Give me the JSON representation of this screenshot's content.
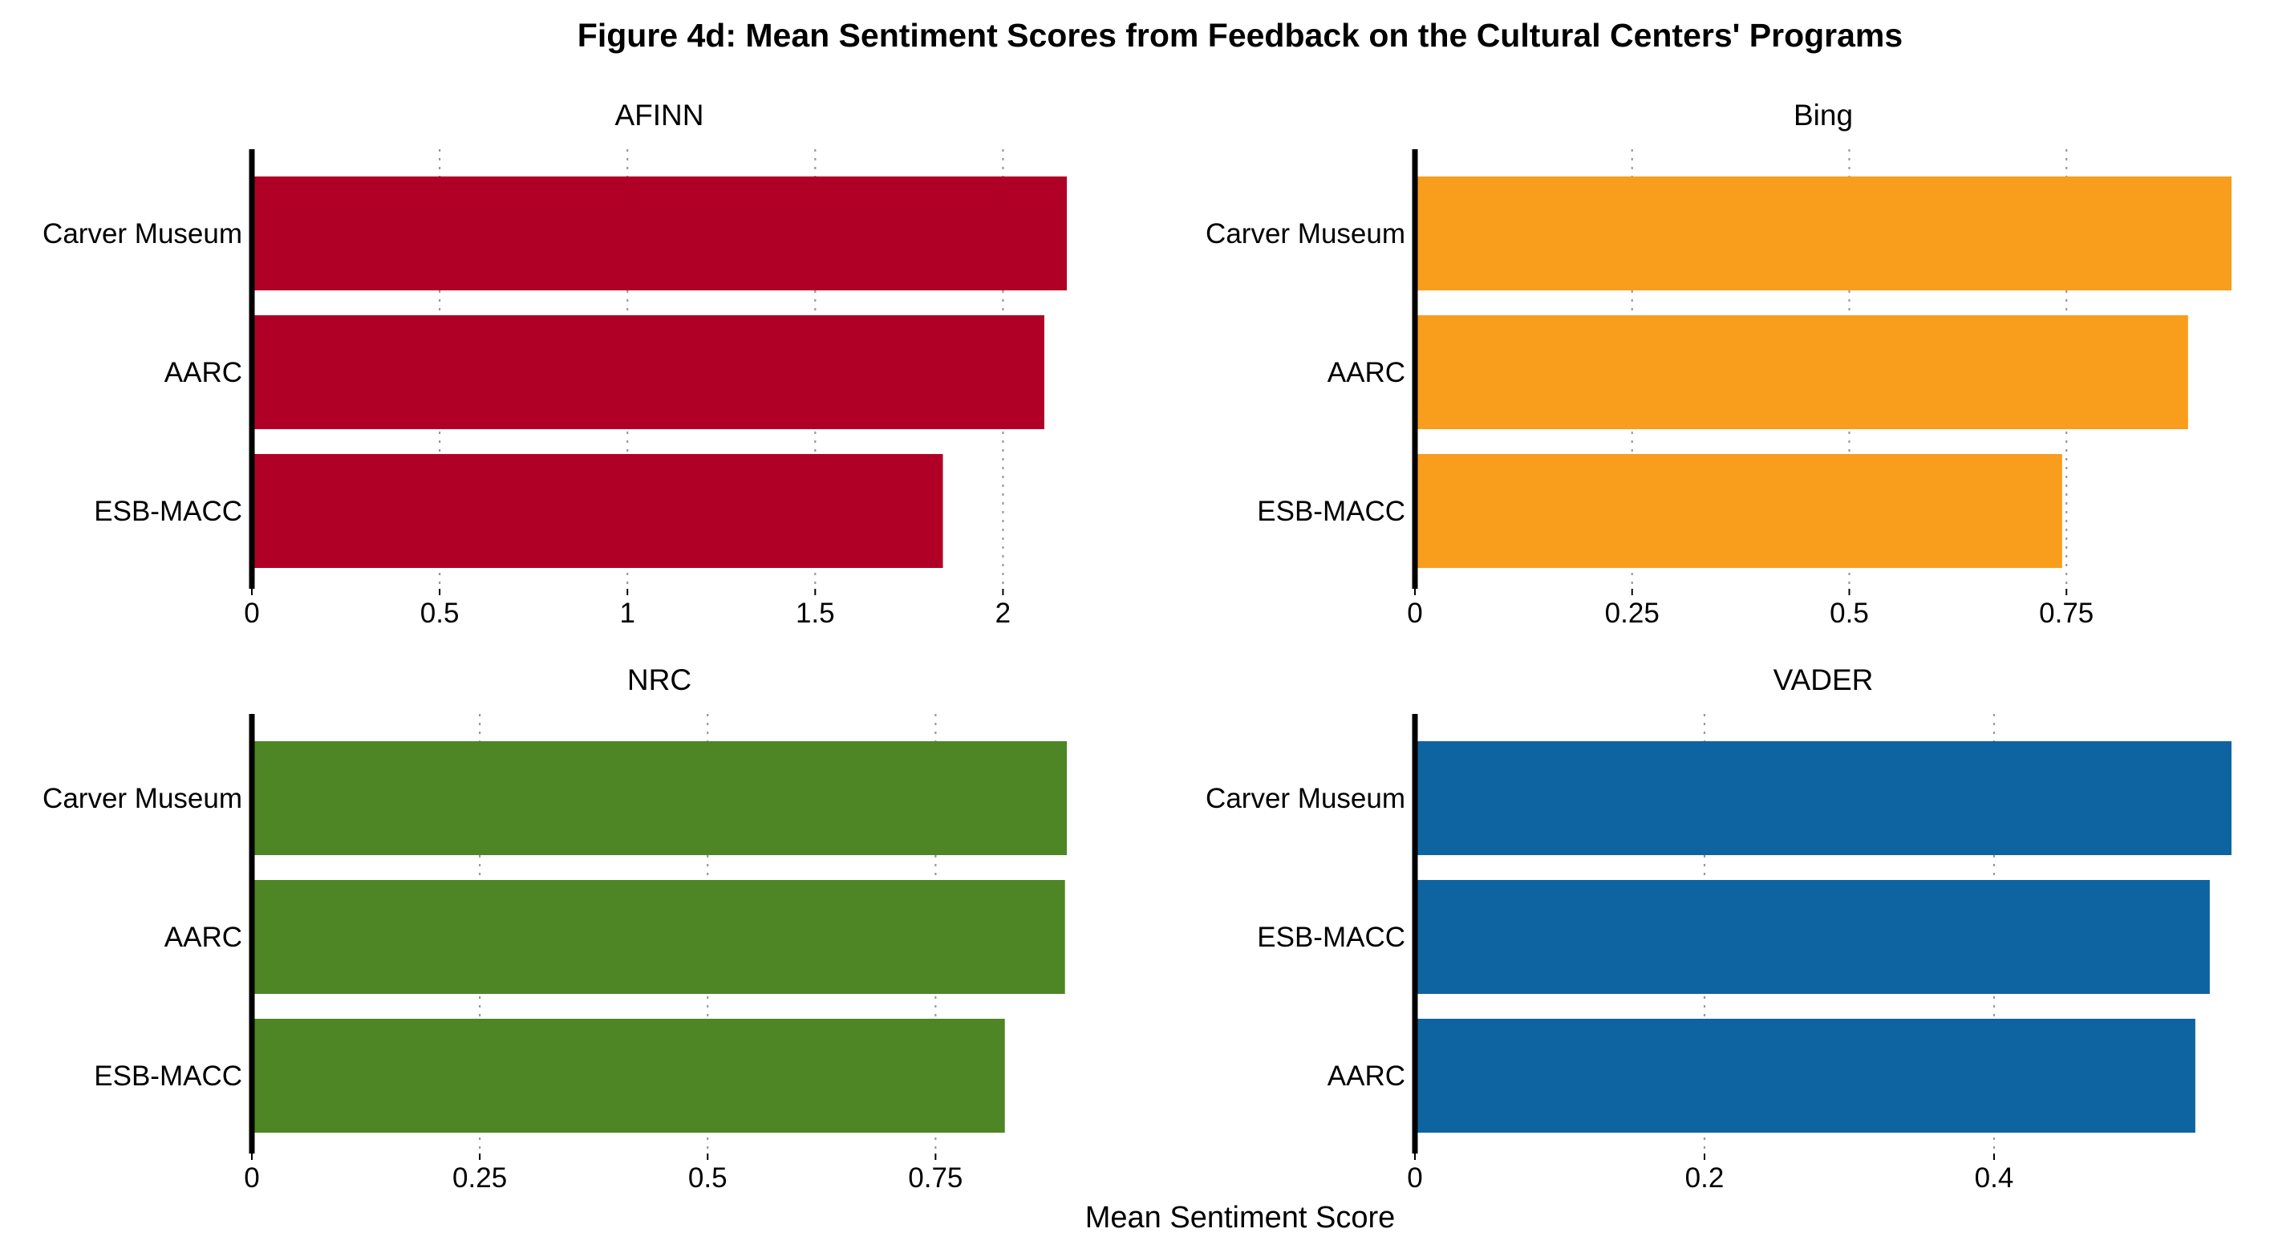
{
  "figure": {
    "title": "Figure 4d: Mean Sentiment Scores from Feedback on the Cultural Centers' Programs",
    "x_axis_title": "Mean Sentiment Score"
  },
  "chart_data": [
    {
      "type": "bar",
      "orientation": "horizontal",
      "title": "AFINN",
      "xlabel": "Mean Sentiment Score",
      "ylabel": "",
      "categories": [
        "Carver Museum",
        "AARC",
        "ESB-MACC"
      ],
      "values": [
        2.17,
        2.11,
        1.84
      ],
      "xlim": [
        0,
        2.17
      ],
      "ticks": [
        0,
        0.5,
        1,
        1.5,
        2
      ],
      "tick_labels": [
        "0",
        "0.5",
        "1",
        "1.5",
        "2"
      ],
      "grid": true,
      "color": "#B10026"
    },
    {
      "type": "bar",
      "orientation": "horizontal",
      "title": "Bing",
      "xlabel": "Mean Sentiment Score",
      "ylabel": "",
      "categories": [
        "Carver Museum",
        "AARC",
        "ESB-MACC"
      ],
      "values": [
        0.94,
        0.89,
        0.745
      ],
      "xlim": [
        0,
        0.94
      ],
      "ticks": [
        0,
        0.25,
        0.5,
        0.75
      ],
      "tick_labels": [
        "0",
        "0.25",
        "0.5",
        "0.75"
      ],
      "grid": true,
      "color": "#F99D1C"
    },
    {
      "type": "bar",
      "orientation": "horizontal",
      "title": "NRC",
      "xlabel": "Mean Sentiment Score",
      "ylabel": "",
      "categories": [
        "Carver Museum",
        "AARC",
        "ESB-MACC"
      ],
      "values": [
        0.894,
        0.892,
        0.826
      ],
      "xlim": [
        0,
        0.894
      ],
      "ticks": [
        0,
        0.25,
        0.5,
        0.75
      ],
      "tick_labels": [
        "0",
        "0.25",
        "0.5",
        "0.75"
      ],
      "grid": true,
      "color": "#4E8626"
    },
    {
      "type": "bar",
      "orientation": "horizontal",
      "title": "VADER",
      "xlabel": "Mean Sentiment Score",
      "ylabel": "",
      "categories": [
        "Carver Museum",
        "ESB-MACC",
        "AARC"
      ],
      "values": [
        0.564,
        0.549,
        0.539
      ],
      "xlim": [
        0,
        0.564
      ],
      "ticks": [
        0,
        0.2,
        0.4
      ],
      "tick_labels": [
        "0",
        "0.2",
        "0.4"
      ],
      "grid": true,
      "color": "#0E64A0"
    }
  ]
}
